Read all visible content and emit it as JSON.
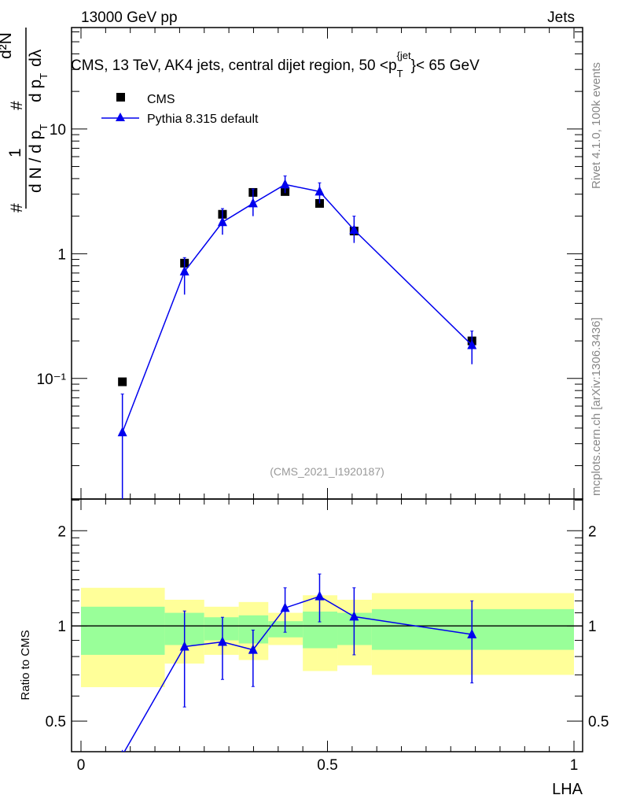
{
  "header": {
    "left": "13000 GeV pp",
    "right": "Jets",
    "side_top": "Rivet 4.1.0,  100k events",
    "side_bottom": "mcplots.cern.ch [arXiv:1306.3436]"
  },
  "chart_data": [
    {
      "type": "scatter",
      "panel": "main",
      "title": "CMS, 13 TeV, AK4 jets, central dijet region, 50 <p_T^{jet}< 65 GeV",
      "title_parts": {
        "main": "CMS, 13 TeV, AK4 jets, central dijet region, 50 <p",
        "sub": "T",
        "sup": "{jet",
        "end": "}< 65 GeV"
      },
      "ylabel_parts": {
        "hash1": "#",
        "one": "1",
        "dn": "d N / d p",
        "T1": "T",
        "hash2": "#",
        "d2n": "d²N",
        "dpt": "d p",
        "T2": "T",
        "dl": "dλ"
      },
      "yscale": "log",
      "ylim": [
        0.0108,
        65
      ],
      "xlim": [
        -0.02,
        1.02
      ],
      "yticks": [
        {
          "v": 10,
          "label": "10"
        },
        {
          "v": 1,
          "label": "1"
        },
        {
          "v": 0.1,
          "label": "10⁻¹"
        }
      ],
      "annotation": "(CMS_2021_I1920187)",
      "legend_placement": "top-left",
      "series": [
        {
          "name": "CMS",
          "marker": "square",
          "color": "#000000",
          "x": [
            0.084,
            0.21,
            0.287,
            0.349,
            0.414,
            0.484,
            0.554,
            0.793
          ],
          "y": [
            0.094,
            0.84,
            2.07,
            3.1,
            3.15,
            2.53,
            1.52,
            0.2
          ]
        },
        {
          "name": "Pythia 8.315 default",
          "marker": "triangle",
          "color": "#0000ee",
          "x": [
            0.084,
            0.21,
            0.287,
            0.349,
            0.414,
            0.484,
            0.554,
            0.793
          ],
          "y": [
            0.037,
            0.72,
            1.79,
            2.53,
            3.59,
            3.15,
            1.55,
            0.185
          ],
          "yerr_up": [
            0.075,
            0.93,
            2.3,
            3.3,
            4.2,
            3.7,
            2.0,
            0.24
          ],
          "yerr_down": [
            0.005,
            0.47,
            1.42,
            2.0,
            3.06,
            2.53,
            1.22,
            0.13
          ]
        }
      ]
    },
    {
      "type": "line",
      "panel": "ratio",
      "ylabel": "Ratio to CMS",
      "xlabel": "LHA",
      "yscale": "log",
      "ylim": [
        0.4,
        2.52
      ],
      "xticks": [
        {
          "v": 0,
          "label": "0"
        },
        {
          "v": 0.5,
          "label": "0.5"
        },
        {
          "v": 1,
          "label": "1"
        }
      ],
      "yticks": [
        {
          "v": 2,
          "label": "2"
        },
        {
          "v": 1,
          "label": "1"
        },
        {
          "v": 0.5,
          "label": "0.5"
        }
      ],
      "bands": {
        "edges": [
          0,
          0.17,
          0.25,
          0.32,
          0.38,
          0.45,
          0.52,
          0.59,
          1.0
        ],
        "yellow_up": [
          1.32,
          1.21,
          1.15,
          1.19,
          1.1,
          1.25,
          1.21,
          1.27
        ],
        "yellow_down": [
          0.64,
          0.76,
          0.81,
          0.78,
          0.87,
          0.72,
          0.75,
          0.7
        ],
        "green_up": [
          1.15,
          1.1,
          1.065,
          1.08,
          1.035,
          1.11,
          1.1,
          1.13
        ],
        "green_down": [
          0.81,
          0.87,
          0.9,
          0.88,
          0.92,
          0.85,
          0.87,
          0.84
        ],
        "yellow_color": "#ffff99",
        "green_color": "#99ff99"
      },
      "series": [
        {
          "name": "Pythia 8.315 default / CMS",
          "color": "#0000ee",
          "x": [
            0.084,
            0.21,
            0.287,
            0.349,
            0.414,
            0.484,
            0.554,
            0.793
          ],
          "y": [
            0.39,
            0.86,
            0.89,
            0.84,
            1.14,
            1.24,
            1.07,
            0.94
          ],
          "yerr_up": [
            null,
            1.115,
            1.065,
            0.97,
            1.32,
            1.46,
            1.32,
            1.2
          ],
          "yerr_down": [
            null,
            0.554,
            0.677,
            0.643,
            0.955,
            1.03,
            0.81,
            0.66
          ]
        }
      ]
    }
  ]
}
